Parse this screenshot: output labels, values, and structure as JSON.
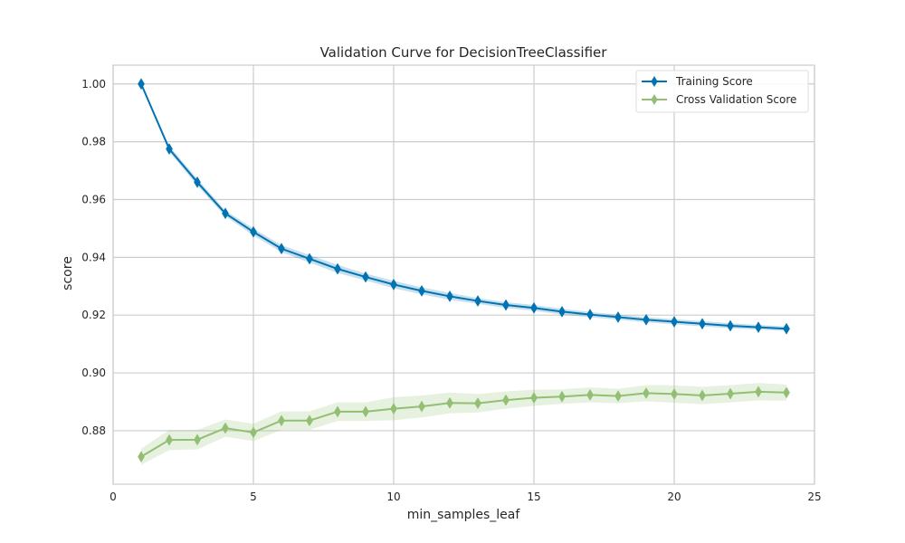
{
  "chart_data": {
    "type": "line",
    "title": "Validation Curve for DecisionTreeClassifier",
    "xlabel": "min_samples_leaf",
    "ylabel": "score",
    "xlim": [
      0,
      25
    ],
    "ylim": [
      0.8615,
      1.0065
    ],
    "x_ticks": [
      0,
      5,
      10,
      15,
      20,
      25
    ],
    "y_ticks": [
      0.88,
      0.9,
      0.92,
      0.94,
      0.96,
      0.98,
      1.0
    ],
    "x_tick_labels": [
      "0",
      "5",
      "10",
      "15",
      "20",
      "25"
    ],
    "y_tick_labels": [
      "0.88",
      "0.90",
      "0.92",
      "0.94",
      "0.96",
      "0.98",
      "1.00"
    ],
    "grid": true,
    "legend_position": "top-right",
    "x": [
      1,
      2,
      3,
      4,
      5,
      6,
      7,
      8,
      9,
      10,
      11,
      12,
      13,
      14,
      15,
      16,
      17,
      18,
      19,
      20,
      21,
      22,
      23,
      24
    ],
    "series": [
      {
        "name": "Training Score",
        "color": "#0173b2",
        "marker": "diamond",
        "values": [
          1.0,
          0.9775,
          0.966,
          0.9552,
          0.9488,
          0.943,
          0.9395,
          0.936,
          0.9332,
          0.9306,
          0.9284,
          0.9265,
          0.9249,
          0.9235,
          0.9225,
          0.9212,
          0.9202,
          0.9193,
          0.9184,
          0.9177,
          0.917,
          0.9163,
          0.9158,
          0.9153
        ],
        "band_width": [
          0.0001,
          0.001,
          0.0012,
          0.001,
          0.0012,
          0.0012,
          0.0013,
          0.0014,
          0.0012,
          0.0013,
          0.0012,
          0.0012,
          0.001,
          0.001,
          0.001,
          0.001,
          0.0009,
          0.0009,
          0.0009,
          0.0009,
          0.0009,
          0.0009,
          0.0008,
          0.0008
        ]
      },
      {
        "name": "Cross Validation Score",
        "color": "#93bf74",
        "marker": "diamond",
        "values": [
          0.871,
          0.8768,
          0.8769,
          0.8809,
          0.8794,
          0.8835,
          0.8835,
          0.8866,
          0.8866,
          0.8876,
          0.8884,
          0.8896,
          0.8895,
          0.8906,
          0.8914,
          0.8918,
          0.8924,
          0.892,
          0.893,
          0.8927,
          0.8922,
          0.8928,
          0.8935,
          0.8932
        ],
        "band_width": [
          0.0028,
          0.0035,
          0.0034,
          0.003,
          0.003,
          0.0032,
          0.0032,
          0.0032,
          0.0032,
          0.004,
          0.0038,
          0.0036,
          0.0032,
          0.003,
          0.0028,
          0.0025,
          0.0026,
          0.0025,
          0.0028,
          0.003,
          0.003,
          0.003,
          0.003,
          0.0028
        ]
      }
    ]
  }
}
